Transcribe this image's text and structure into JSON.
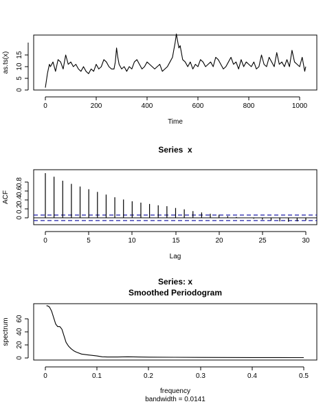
{
  "chart_data": [
    {
      "type": "line",
      "title": "",
      "xlabel": "Time",
      "ylabel": "as.ts(x)",
      "xlim": [
        0,
        1024
      ],
      "ylim": [
        0,
        23
      ],
      "xticks": [
        0,
        200,
        400,
        600,
        800,
        1000
      ],
      "yticks": [
        0,
        5,
        10,
        15
      ],
      "series": [
        {
          "x": [
            0,
            4,
            8,
            12,
            16,
            20,
            30,
            40,
            50,
            60,
            70,
            80,
            90,
            100,
            110,
            120,
            130,
            140,
            150,
            160,
            170,
            180,
            190,
            200,
            210,
            220,
            230,
            240,
            250,
            260,
            270,
            275,
            280,
            285,
            290,
            300,
            310,
            320,
            330,
            340,
            350,
            360,
            370,
            380,
            390,
            400,
            410,
            420,
            430,
            440,
            450,
            460,
            470,
            480,
            490,
            500,
            505,
            510,
            515,
            520,
            525,
            530,
            540,
            550,
            560,
            570,
            580,
            590,
            600,
            610,
            620,
            630,
            640,
            650,
            660,
            670,
            680,
            690,
            700,
            710,
            720,
            730,
            740,
            750,
            760,
            770,
            780,
            790,
            800,
            810,
            820,
            830,
            840,
            850,
            860,
            870,
            880,
            890,
            900,
            910,
            920,
            930,
            940,
            950,
            960,
            970,
            980,
            990,
            1000,
            1010,
            1020,
            1024
          ],
          "values": [
            1,
            4,
            7,
            9,
            11,
            10,
            12,
            8,
            13,
            12,
            9,
            15,
            11,
            12,
            10,
            11,
            9,
            8,
            10,
            8,
            7,
            9,
            8,
            11,
            9,
            10,
            13,
            12,
            10,
            9,
            9,
            12,
            18,
            14,
            11,
            9,
            10,
            8,
            10,
            9,
            12,
            13,
            11,
            9,
            10,
            12,
            11,
            10,
            9,
            10,
            11,
            8,
            9,
            10,
            12,
            14,
            17,
            20,
            24,
            21,
            18,
            19,
            13,
            12,
            10,
            12,
            9,
            11,
            10,
            13,
            12,
            10,
            11,
            12,
            10,
            14,
            13,
            11,
            9,
            10,
            12,
            14,
            11,
            12,
            9,
            13,
            10,
            12,
            11,
            10,
            12,
            9,
            10,
            15,
            11,
            10,
            14,
            12,
            10,
            16,
            11,
            12,
            10,
            13,
            10,
            17,
            12,
            11,
            10,
            14,
            8,
            10
          ]
        }
      ]
    },
    {
      "type": "bar",
      "title": "Series  x",
      "xlabel": "Lag",
      "ylabel": "ACF",
      "xlim": [
        -1.2,
        30.8
      ],
      "ylim": [
        -0.13,
        1.0
      ],
      "xticks": [
        0,
        5,
        10,
        15,
        20,
        25,
        30
      ],
      "yticks": [
        0.0,
        0.2,
        0.4,
        0.6,
        0.8
      ],
      "confidence_limit": 0.061,
      "categories": [
        0,
        1,
        2,
        3,
        4,
        5,
        6,
        7,
        8,
        9,
        10,
        11,
        12,
        13,
        14,
        15,
        16,
        17,
        18,
        19,
        20,
        21,
        22,
        23,
        24,
        25,
        26,
        27,
        28,
        29,
        30
      ],
      "values": [
        1.0,
        0.92,
        0.83,
        0.76,
        0.7,
        0.64,
        0.58,
        0.52,
        0.46,
        0.41,
        0.37,
        0.34,
        0.31,
        0.28,
        0.26,
        0.22,
        0.19,
        0.15,
        0.12,
        0.09,
        0.07,
        0.04,
        0.02,
        0.0,
        -0.02,
        -0.04,
        -0.06,
        -0.08,
        -0.09,
        -0.08,
        -0.06
      ]
    },
    {
      "type": "line",
      "title": "Series: x",
      "subtitle": "Smoothed Periodogram",
      "xlabel": "frequency",
      "sublabel": "bandwidth = 0.0141",
      "ylabel": "spectrum",
      "xlim": [
        -0.02,
        0.52
      ],
      "ylim": [
        -2,
        86
      ],
      "xticks": [
        0.0,
        0.1,
        0.2,
        0.3,
        0.4,
        0.5
      ],
      "yticks": [
        0,
        20,
        40,
        60
      ],
      "series": [
        {
          "x": [
            0.002,
            0.004,
            0.008,
            0.012,
            0.016,
            0.02,
            0.024,
            0.028,
            0.032,
            0.036,
            0.04,
            0.045,
            0.05,
            0.055,
            0.06,
            0.07,
            0.08,
            0.09,
            0.1,
            0.11,
            0.12,
            0.14,
            0.16,
            0.18,
            0.2,
            0.25,
            0.3,
            0.35,
            0.4,
            0.45,
            0.5
          ],
          "values": [
            80,
            80,
            78,
            72,
            62,
            52,
            48,
            48,
            44,
            34,
            24,
            18,
            14,
            11,
            9,
            6,
            5,
            4,
            3,
            1.8,
            1.5,
            1.5,
            1.8,
            1.5,
            1.3,
            1.0,
            0.8,
            0.7,
            0.6,
            0.6,
            0.5
          ]
        }
      ]
    }
  ]
}
